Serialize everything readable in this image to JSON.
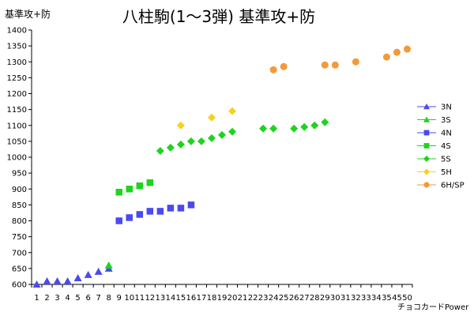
{
  "chart_data": {
    "type": "scatter",
    "title": "八柱駒(1～3弾) 基準攻+防",
    "ylabel": "基準攻+防",
    "xlabel": "チョコカードPower",
    "ylim": [
      600,
      1400
    ],
    "y_ticks": [
      600,
      650,
      700,
      750,
      800,
      850,
      900,
      950,
      1000,
      1050,
      1100,
      1150,
      1200,
      1250,
      1300,
      1350,
      1400
    ],
    "x_ticks": [
      1,
      2,
      3,
      4,
      5,
      6,
      7,
      8,
      9,
      10,
      11,
      12,
      13,
      14,
      15,
      16,
      17,
      18,
      19,
      20,
      21,
      22,
      23,
      24,
      25,
      26,
      27,
      28,
      29,
      30,
      31,
      32,
      33,
      34,
      35,
      45,
      50
    ],
    "grid": false,
    "legend_position": "right",
    "series": [
      {
        "name": "3N",
        "marker": "triangle",
        "color": "#4a4af0",
        "points": [
          [
            1,
            600
          ],
          [
            2,
            610
          ],
          [
            3,
            610
          ],
          [
            4,
            610
          ],
          [
            5,
            620
          ],
          [
            6,
            630
          ],
          [
            7,
            640
          ],
          [
            8,
            650
          ]
        ]
      },
      {
        "name": "3S",
        "marker": "triangle",
        "color": "#1ed41e",
        "points": [
          [
            8,
            660
          ]
        ]
      },
      {
        "name": "4N",
        "marker": "square",
        "color": "#4a4af0",
        "points": [
          [
            9,
            800
          ],
          [
            10,
            810
          ],
          [
            11,
            820
          ],
          [
            12,
            830
          ],
          [
            13,
            830
          ],
          [
            14,
            840
          ],
          [
            15,
            840
          ],
          [
            16,
            850
          ]
        ]
      },
      {
        "name": "4S",
        "marker": "square",
        "color": "#1ed41e",
        "points": [
          [
            9,
            890
          ],
          [
            10,
            900
          ],
          [
            11,
            910
          ],
          [
            12,
            920
          ]
        ]
      },
      {
        "name": "5S",
        "marker": "diamond",
        "color": "#1ed41e",
        "points": [
          [
            13,
            1020
          ],
          [
            14,
            1030
          ],
          [
            15,
            1040
          ],
          [
            16,
            1050
          ],
          [
            17,
            1050
          ],
          [
            18,
            1060
          ],
          [
            19,
            1070
          ],
          [
            20,
            1080
          ],
          [
            23,
            1090
          ],
          [
            24,
            1090
          ],
          [
            26,
            1090
          ],
          [
            27,
            1095
          ],
          [
            28,
            1100
          ],
          [
            29,
            1110
          ]
        ]
      },
      {
        "name": "5H",
        "marker": "diamond",
        "color": "#f5d21c",
        "points": [
          [
            15,
            1100
          ],
          [
            18,
            1125
          ],
          [
            20,
            1145
          ]
        ]
      },
      {
        "name": "6H/SP",
        "marker": "circle",
        "color": "#f29a3a",
        "points": [
          [
            24,
            1275
          ],
          [
            25,
            1285
          ],
          [
            29,
            1290
          ],
          [
            30,
            1290
          ],
          [
            32,
            1300
          ],
          [
            35,
            1315
          ],
          [
            45,
            1330
          ],
          [
            50,
            1340
          ]
        ]
      }
    ]
  }
}
